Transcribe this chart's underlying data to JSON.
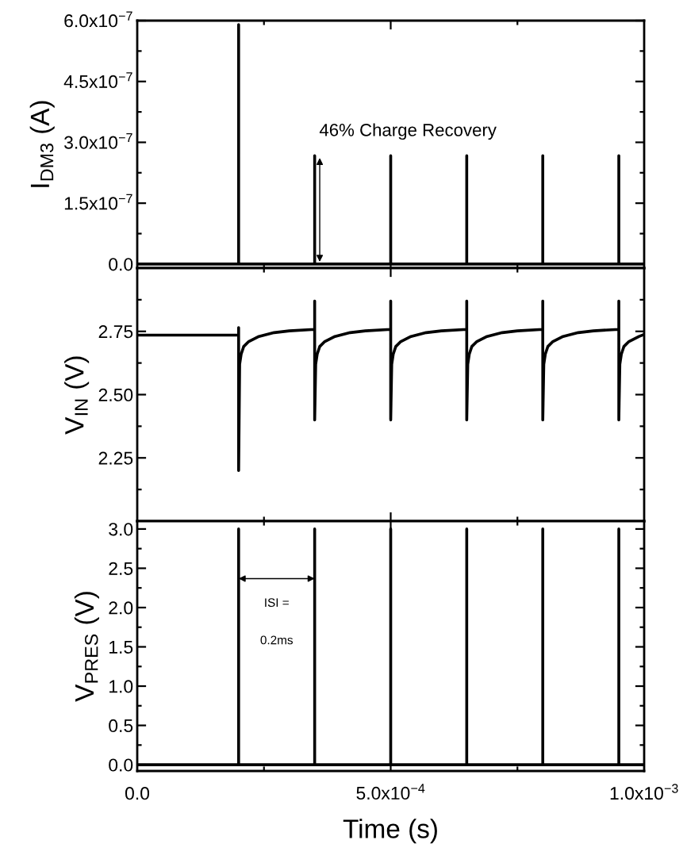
{
  "chart_data": [
    {
      "type": "line",
      "ylabel": "I$_{DM3}$ (A)",
      "tick_labels": "y",
      "grid": false,
      "legend": false,
      "xlim": [
        0,
        0.001
      ],
      "xticks": [
        {
          "value": 0,
          "label": null
        },
        {
          "value": 0.00025,
          "label": null
        },
        {
          "value": 0.0005,
          "label": null
        },
        {
          "value": 0.00075,
          "label": null
        },
        {
          "value": 0.001,
          "label": null
        }
      ],
      "ylim": [
        -1e-08,
        6e-07
      ],
      "yticks": [
        {
          "value": 0,
          "label": "0.0"
        },
        {
          "value": 7.5e-08,
          "label": null
        },
        {
          "value": 1.5e-07,
          "label": "1.5x10$^{−7}$"
        },
        {
          "value": 2.25e-07,
          "label": null
        },
        {
          "value": 3e-07,
          "label": "3.0x10$^{−7}$"
        },
        {
          "value": 3.75e-07,
          "label": null
        },
        {
          "value": 4.5e-07,
          "label": "4.5x10$^{−7}$"
        },
        {
          "value": 5.25e-07,
          "label": null
        },
        {
          "value": 6e-07,
          "label": "6.0x10$^{−7}$"
        }
      ],
      "annotations": [
        {
          "text": "46% Charge Recovery",
          "x": 0.00036,
          "y": 2.67e-07
        }
      ],
      "series": [
        {
          "color": "#000000",
          "x": [
            0,
            0.0002,
            0.0002,
            0.0002,
            0.00035,
            0.00035,
            0.00035,
            0.0005,
            0.0005,
            0.0005,
            0.00065,
            0.00065,
            0.00065,
            0.0008,
            0.0008,
            0.0008,
            0.00095,
            0.00095,
            0.00095,
            0.001
          ],
          "values": [
            0,
            0,
            5.9e-07,
            0,
            0,
            2.67e-07,
            0,
            0,
            2.67e-07,
            0,
            0,
            2.67e-07,
            0,
            0,
            2.67e-07,
            0,
            0,
            2.67e-07,
            0,
            0
          ]
        }
      ]
    },
    {
      "type": "line",
      "ylabel": "V$_{IN}$ (V)",
      "tick_labels": "y",
      "grid": false,
      "legend": false,
      "xlim": [
        0,
        0.001
      ],
      "xticks": [
        {
          "value": 0,
          "label": null
        },
        {
          "value": 0.00025,
          "label": null
        },
        {
          "value": 0.0005,
          "label": null
        },
        {
          "value": 0.00075,
          "label": null
        },
        {
          "value": 0.001,
          "label": null
        }
      ],
      "ylim": [
        2.0,
        3.0
      ],
      "yticks": [
        {
          "value": 2.125,
          "label": null
        },
        {
          "value": 2.25,
          "label": "2.25"
        },
        {
          "value": 2.375,
          "label": null
        },
        {
          "value": 2.5,
          "label": "2.50"
        },
        {
          "value": 2.625,
          "label": null
        },
        {
          "value": 2.75,
          "label": "2.75"
        },
        {
          "value": 2.875,
          "label": null
        }
      ],
      "series": [
        {
          "color": "#000000",
          "x": [
            0,
            0.0002,
            0.0002,
            0.0002,
            0.000202,
            0.000205,
            0.00021,
            0.00022,
            0.00024,
            0.00027,
            0.0003,
            0.00035,
            0.00035,
            0.00035,
            0.000352,
            0.000355,
            0.00036,
            0.00037,
            0.00039,
            0.00042,
            0.00045,
            0.0005,
            0.0005,
            0.0005,
            0.000502,
            0.000505,
            0.00051,
            0.00052,
            0.00054,
            0.00057,
            0.0006,
            0.00065,
            0.00065,
            0.00065,
            0.000652,
            0.000655,
            0.00066,
            0.00067,
            0.00069,
            0.00072,
            0.00075,
            0.0008,
            0.0008,
            0.0008,
            0.000802,
            0.000805,
            0.00081,
            0.00082,
            0.00084,
            0.00087,
            0.0009,
            0.00095,
            0.00095,
            0.00095,
            0.000952,
            0.000955,
            0.00096,
            0.00097,
            0.00099,
            0.001
          ],
          "values": [
            2.735,
            2.735,
            2.765,
            2.2,
            2.62,
            2.66,
            2.69,
            2.71,
            2.73,
            2.745,
            2.752,
            2.758,
            2.87,
            2.4,
            2.62,
            2.66,
            2.69,
            2.71,
            2.73,
            2.745,
            2.752,
            2.758,
            2.87,
            2.4,
            2.62,
            2.66,
            2.69,
            2.71,
            2.73,
            2.745,
            2.752,
            2.758,
            2.87,
            2.4,
            2.62,
            2.66,
            2.69,
            2.71,
            2.73,
            2.745,
            2.752,
            2.758,
            2.87,
            2.4,
            2.62,
            2.66,
            2.69,
            2.71,
            2.73,
            2.745,
            2.752,
            2.758,
            2.87,
            2.4,
            2.62,
            2.66,
            2.69,
            2.71,
            2.73,
            2.738
          ]
        }
      ]
    },
    {
      "type": "line",
      "ylabel": "V$_{PRES}$ (V)",
      "xlabel": "Time (s)",
      "grid": false,
      "legend": false,
      "xlim": [
        0,
        0.001
      ],
      "xticks": [
        {
          "value": 0,
          "label": "0.0"
        },
        {
          "value": 0.00025,
          "label": null
        },
        {
          "value": 0.0005,
          "label": "5.0x10$^{−4}$"
        },
        {
          "value": 0.00075,
          "label": null
        },
        {
          "value": 0.001,
          "label": "1.0x10$^{−3}$"
        }
      ],
      "ylim": [
        -0.08,
        3.1
      ],
      "yticks": [
        {
          "value": 0,
          "label": "0.0"
        },
        {
          "value": 0.25,
          "label": null
        },
        {
          "value": 0.5,
          "label": "0.5"
        },
        {
          "value": 0.75,
          "label": null
        },
        {
          "value": 1.0,
          "label": "1.0"
        },
        {
          "value": 1.25,
          "label": null
        },
        {
          "value": 1.5,
          "label": "1.5"
        },
        {
          "value": 1.75,
          "label": null
        },
        {
          "value": 2.0,
          "label": "2.0"
        },
        {
          "value": 2.25,
          "label": null
        },
        {
          "value": 2.5,
          "label": "2.5"
        },
        {
          "value": 2.75,
          "label": null
        },
        {
          "value": 3.0,
          "label": "3.0"
        }
      ],
      "annotations": [
        "ISI =",
        "0.2ms"
      ],
      "series": [
        {
          "color": "#000000",
          "x": [
            0,
            0.0002,
            0.0002,
            0.0002,
            0.00035,
            0.00035,
            0.00035,
            0.0005,
            0.0005,
            0.0005,
            0.00065,
            0.00065,
            0.00065,
            0.0008,
            0.0008,
            0.0008,
            0.00095,
            0.00095,
            0.00095,
            0.001
          ],
          "values": [
            0,
            0,
            3.0,
            0,
            0,
            3.0,
            0,
            0,
            3.0,
            0,
            0,
            3.0,
            0,
            0,
            3.0,
            0,
            0,
            3.0,
            0,
            0
          ]
        }
      ]
    }
  ]
}
